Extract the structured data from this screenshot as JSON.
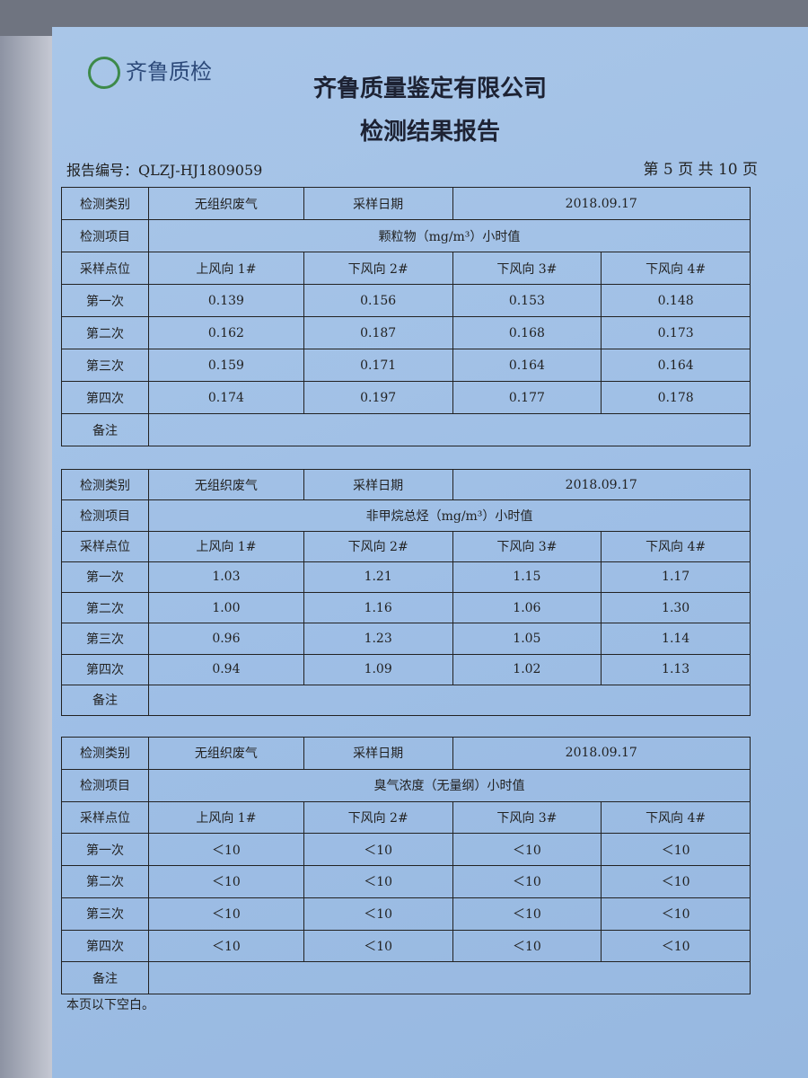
{
  "header": {
    "logo": "齐鲁质检",
    "company": "齐鲁质量鉴定有限公司",
    "title": "检测结果报告",
    "report_no_label": "报告编号：",
    "report_no": "QLZJ-HJ1809059",
    "page": "第 5 页  共 10 页"
  },
  "tables": [
    {
      "rows": [
        [
          "检测类别",
          "无组织废气",
          "采样日期",
          "2018.09.17"
        ],
        [
          "检测项目",
          "颗粒物（mg/m³）小时值"
        ],
        [
          "采样点位",
          "上风向 1#",
          "下风向 2#",
          "下风向 3#",
          "下风向 4#"
        ],
        [
          "第一次",
          "0.139",
          "0.156",
          "0.153",
          "0.148"
        ],
        [
          "第二次",
          "0.162",
          "0.187",
          "0.168",
          "0.173"
        ],
        [
          "第三次",
          "0.159",
          "0.171",
          "0.164",
          "0.164"
        ],
        [
          "第四次",
          "0.174",
          "0.197",
          "0.177",
          "0.178"
        ],
        [
          "备注"
        ]
      ]
    },
    {
      "rows": [
        [
          "检测类别",
          "无组织废气",
          "采样日期",
          "2018.09.17"
        ],
        [
          "检测项目",
          "非甲烷总烃（mg/m³）小时值"
        ],
        [
          "采样点位",
          "上风向 1#",
          "下风向 2#",
          "下风向 3#",
          "下风向 4#"
        ],
        [
          "第一次",
          "1.03",
          "1.21",
          "1.15",
          "1.17"
        ],
        [
          "第二次",
          "1.00",
          "1.16",
          "1.06",
          "1.30"
        ],
        [
          "第三次",
          "0.96",
          "1.23",
          "1.05",
          "1.14"
        ],
        [
          "第四次",
          "0.94",
          "1.09",
          "1.02",
          "1.13"
        ],
        [
          "备注"
        ]
      ]
    },
    {
      "rows": [
        [
          "检测类别",
          "无组织废气",
          "采样日期",
          "2018.09.17"
        ],
        [
          "检测项目",
          "臭气浓度（无量纲）小时值"
        ],
        [
          "采样点位",
          "上风向 1#",
          "下风向 2#",
          "下风向 3#",
          "下风向 4#"
        ],
        [
          "第一次",
          "＜10",
          "＜10",
          "＜10",
          "＜10"
        ],
        [
          "第二次",
          "＜10",
          "＜10",
          "＜10",
          "＜10"
        ],
        [
          "第三次",
          "＜10",
          "＜10",
          "＜10",
          "＜10"
        ],
        [
          "第四次",
          "＜10",
          "＜10",
          "＜10",
          "＜10"
        ],
        [
          "备注"
        ]
      ]
    }
  ],
  "footer": "本页以下空白。"
}
